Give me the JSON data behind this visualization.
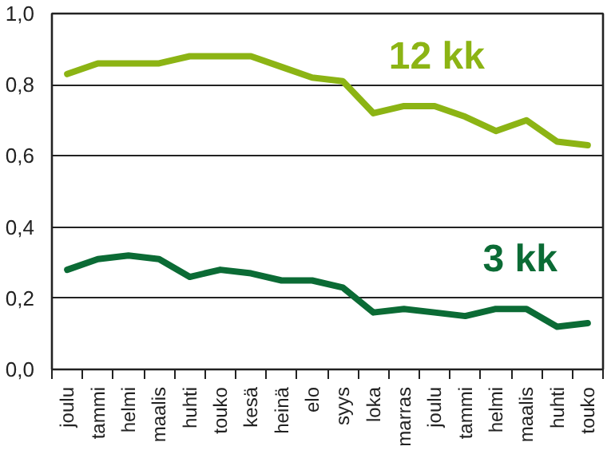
{
  "chart_data": {
    "type": "line",
    "categories": [
      "joulu",
      "tammi",
      "helmi",
      "maalis",
      "huhti",
      "touko",
      "kesä",
      "heinä",
      "elo",
      "syys",
      "loka",
      "marras",
      "joulu",
      "tammi",
      "helmi",
      "maalis",
      "huhti",
      "touko"
    ],
    "series": [
      {
        "name": "12 kk",
        "color": "#8cb414",
        "values": [
          0.83,
          0.86,
          0.86,
          0.86,
          0.88,
          0.88,
          0.88,
          0.85,
          0.82,
          0.81,
          0.72,
          0.74,
          0.74,
          0.71,
          0.67,
          0.7,
          0.64,
          0.63
        ]
      },
      {
        "name": "3 kk",
        "color": "#0b6b35",
        "values": [
          0.28,
          0.31,
          0.32,
          0.31,
          0.26,
          0.28,
          0.27,
          0.25,
          0.25,
          0.23,
          0.16,
          0.17,
          0.16,
          0.15,
          0.17,
          0.17,
          0.12,
          0.13
        ]
      }
    ],
    "ylim": [
      0,
      1
    ],
    "yticks": [
      {
        "value": 0,
        "label": "0,0"
      },
      {
        "value": 0.2,
        "label": "0,2"
      },
      {
        "value": 0.4,
        "label": "0,4"
      },
      {
        "value": 0.6,
        "label": "0,6"
      },
      {
        "value": 0.8,
        "label": "0,8"
      },
      {
        "value": 1,
        "label": "1,0"
      }
    ],
    "grid": "y",
    "legend": false,
    "marker": "none",
    "line_style": "solid"
  }
}
